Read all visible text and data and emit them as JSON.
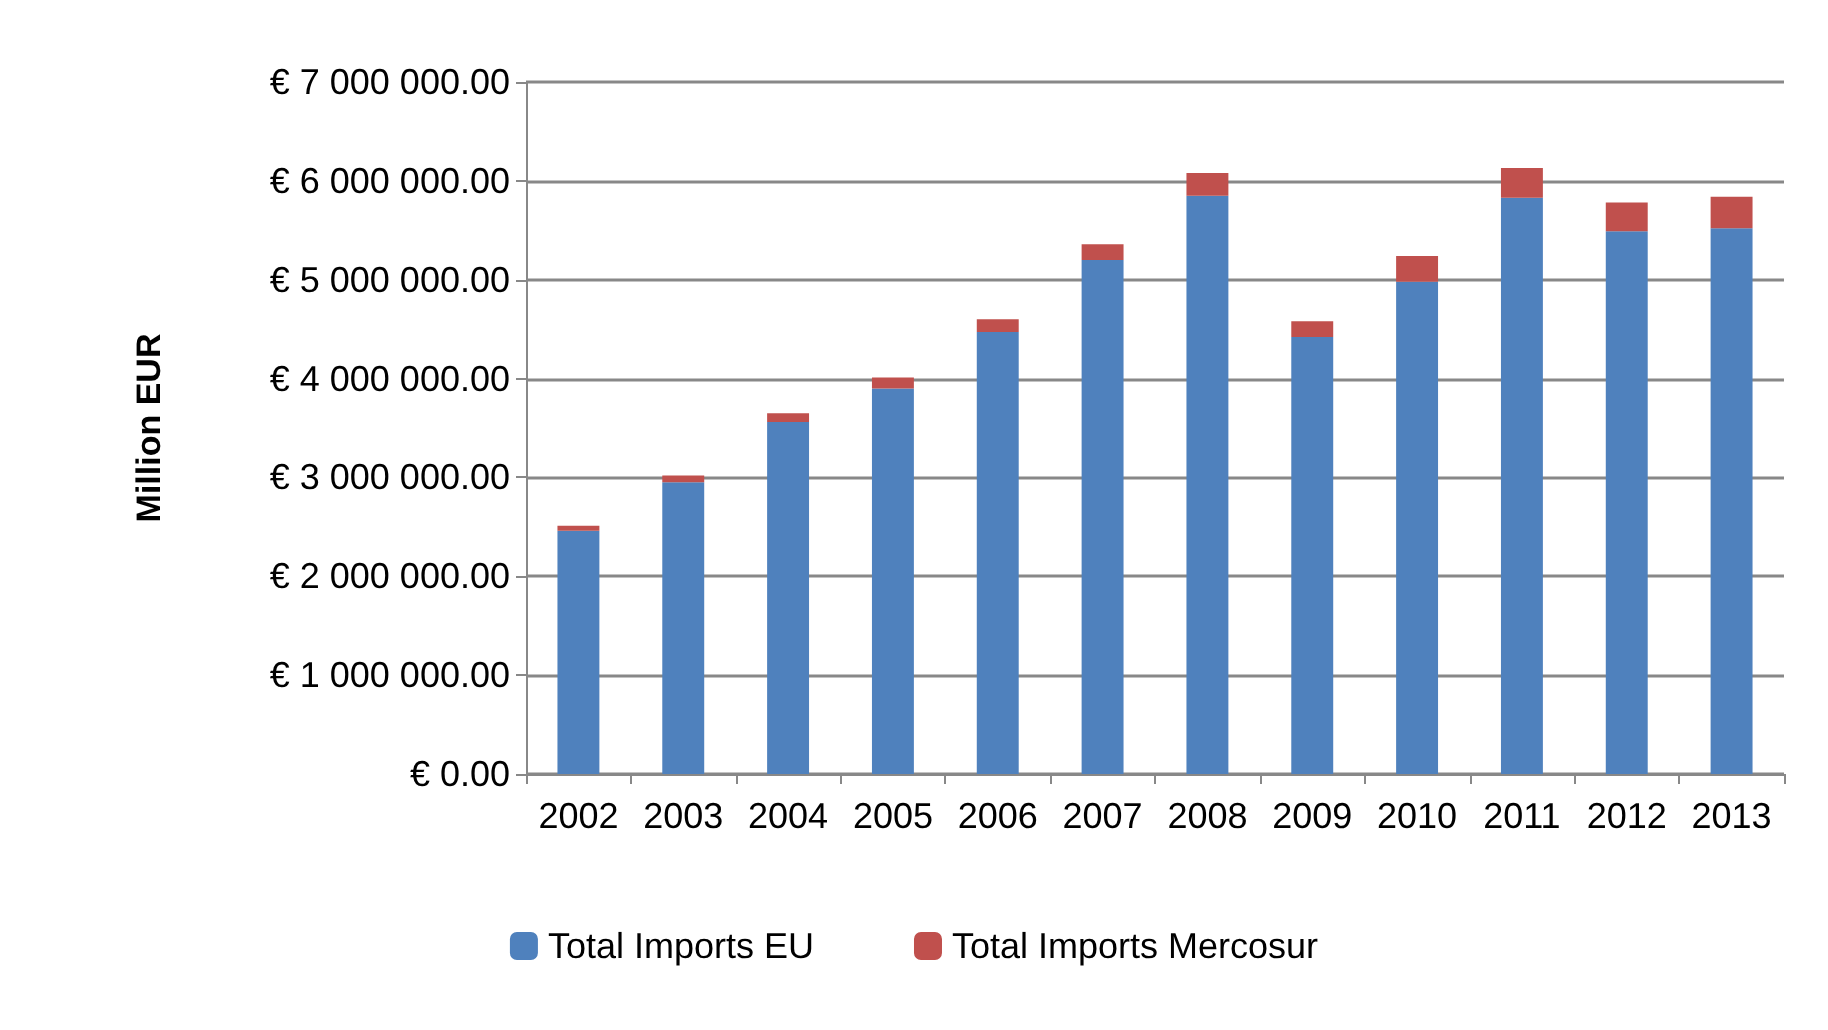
{
  "chart_data": {
    "type": "bar",
    "stacked": true,
    "ylabel": "Million EUR",
    "categories": [
      "2002",
      "2003",
      "2004",
      "2005",
      "2006",
      "2007",
      "2008",
      "2009",
      "2010",
      "2011",
      "2012",
      "2013"
    ],
    "series": [
      {
        "name": "Total Imports EU",
        "color": "#4f81bd",
        "values": [
          2460000,
          2950000,
          3560000,
          3900000,
          4470000,
          5200000,
          5850000,
          4420000,
          4980000,
          5830000,
          5490000,
          5520000
        ]
      },
      {
        "name": "Total Imports Mercosur",
        "color": "#c0504d",
        "values": [
          50000,
          70000,
          90000,
          110000,
          130000,
          160000,
          230000,
          160000,
          260000,
          300000,
          290000,
          320000
        ]
      }
    ],
    "ylim": [
      0,
      7000000
    ],
    "yticks": [
      {
        "value": 0,
        "label": "€ 0.00"
      },
      {
        "value": 1000000,
        "label": "€ 1 000 000.00"
      },
      {
        "value": 2000000,
        "label": "€ 2 000 000.00"
      },
      {
        "value": 3000000,
        "label": "€ 3 000 000.00"
      },
      {
        "value": 4000000,
        "label": "€ 4 000 000.00"
      },
      {
        "value": 5000000,
        "label": "€ 5 000 000.00"
      },
      {
        "value": 6000000,
        "label": "€ 6 000 000.00"
      },
      {
        "value": 7000000,
        "label": "€ 7 000 000.00"
      }
    ],
    "grid": true,
    "legend": "bottom"
  }
}
